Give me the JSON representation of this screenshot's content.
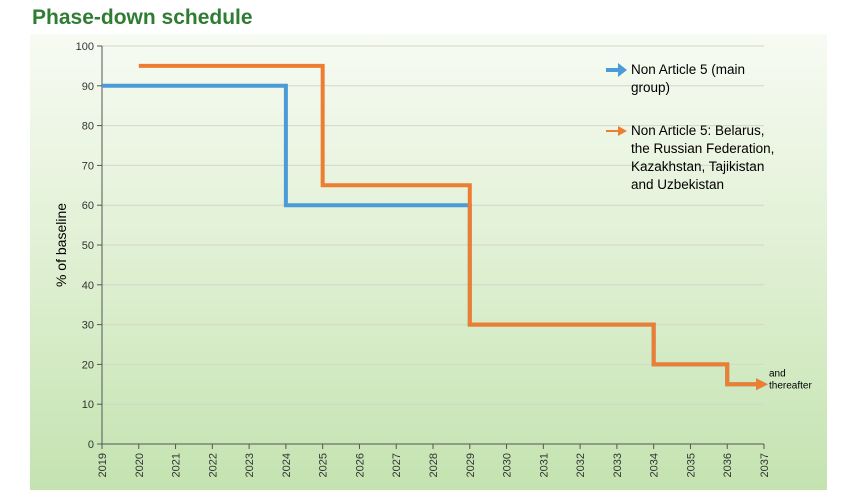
{
  "title": "Phase-down schedule",
  "chart_data": {
    "type": "line",
    "title": "Phase-down schedule",
    "xlabel": "",
    "ylabel": "% of baseline",
    "xlim": [
      2019,
      2037
    ],
    "ylim": [
      0,
      100
    ],
    "x_ticks": [
      "2019",
      "2020",
      "2021",
      "2022",
      "2023",
      "2024",
      "2025",
      "2026",
      "2027",
      "2028",
      "2029",
      "2030",
      "2031",
      "2032",
      "2033",
      "2034",
      "2035",
      "2036",
      "2037"
    ],
    "y_ticks": [
      "0",
      "10",
      "20",
      "30",
      "40",
      "50",
      "60",
      "70",
      "80",
      "90",
      "100"
    ],
    "grid": "horizontal",
    "legend_position": "top-right",
    "series": [
      {
        "name": "Non Article 5 (main group)",
        "legend_lines": [
          "Non Article 5 (main",
          "group)"
        ],
        "color": "#4a9bd8",
        "step": true,
        "points": [
          [
            2019,
            90
          ],
          [
            2024,
            60
          ],
          [
            2029,
            30
          ],
          [
            2034,
            20
          ],
          [
            2036,
            15
          ],
          [
            2037,
            15
          ]
        ]
      },
      {
        "name": "Non Article 5: Belarus, the Russian Federation, Kazakhstan, Tajikistan and Uzbekistan",
        "legend_lines": [
          "Non Article 5: Belarus,",
          "the Russian Federation,",
          "Kazakhstan, Tajikistan",
          "and Uzbekistan"
        ],
        "color": "#ed7d31",
        "step": true,
        "points": [
          [
            2020,
            95
          ],
          [
            2025,
            65
          ],
          [
            2029,
            30
          ],
          [
            2034,
            20
          ],
          [
            2036,
            15
          ],
          [
            2037,
            15
          ]
        ]
      }
    ],
    "annotations": [
      {
        "lines": [
          "and",
          "thereafter"
        ],
        "x": 2037,
        "y": 15
      }
    ]
  }
}
